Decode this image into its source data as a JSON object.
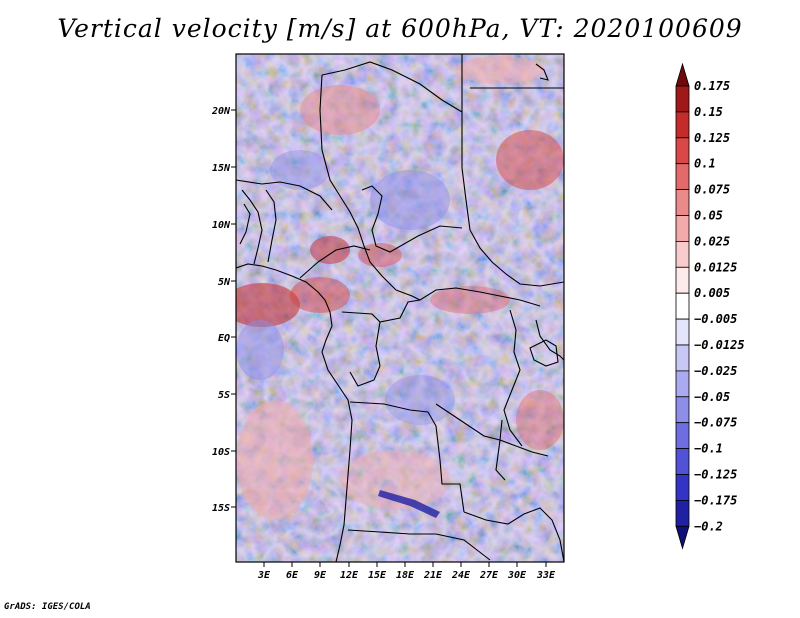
{
  "title": "Vertical velocity [m/s] at 600hPa, VT: 2020100609",
  "credit": "GrADS: IGES/COLA",
  "map": {
    "lon_ticks": [
      "3E",
      "6E",
      "9E",
      "12E",
      "15E",
      "18E",
      "21E",
      "24E",
      "27E",
      "30E",
      "33E"
    ],
    "lat_ticks": [
      "20N",
      "15N",
      "10N",
      "5N",
      "EQ",
      "5S",
      "10S",
      "15S"
    ]
  },
  "colorbar": {
    "levels": [
      "0.175",
      "0.15",
      "0.125",
      "0.1",
      "0.075",
      "0.05",
      "0.025",
      "0.0125",
      "0.005",
      "−0.005",
      "−0.0125",
      "−0.025",
      "−0.05",
      "−0.075",
      "−0.1",
      "−0.125",
      "−0.175",
      "−0.2"
    ],
    "colors": [
      "#6e0a0a",
      "#a01919",
      "#c42b2b",
      "#d84848",
      "#e26a6a",
      "#ea8a8a",
      "#f2aaaa",
      "#f8cccc",
      "#fdeaea",
      "#ffffff",
      "#e4e4fb",
      "#c8c8f6",
      "#aaaaf0",
      "#8e8ee8",
      "#6e6ee0",
      "#5252d6",
      "#3434c4",
      "#2020a4",
      "#101078"
    ]
  }
}
